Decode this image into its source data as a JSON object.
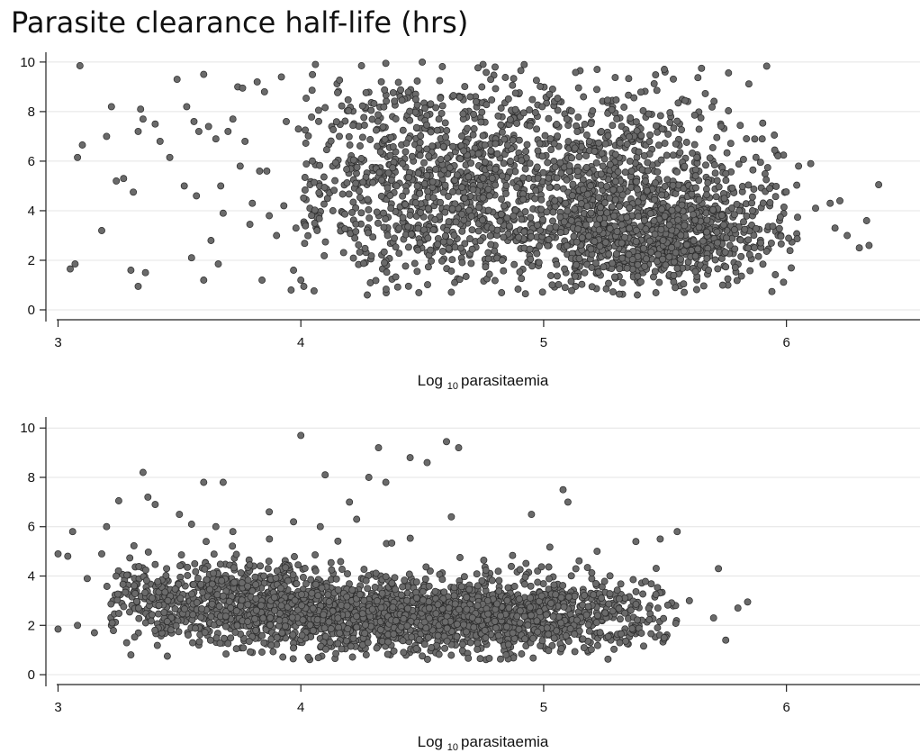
{
  "title": "Parasite clearance half-life (hrs)",
  "colors": {
    "point_fill": "#6a6a6a",
    "point_stroke": "#2b2b2b",
    "grid": "#e4e4e4"
  },
  "chart_data": [
    {
      "type": "scatter",
      "xlabel": {
        "main": "Log",
        "sub": "10",
        "rest": "parasitaemia"
      },
      "ylabel": "",
      "xlim": [
        2.95,
        6.55
      ],
      "ylim": [
        -0.4,
        10.25
      ],
      "xticks": [
        3,
        4,
        5,
        6
      ],
      "yticks": [
        0,
        2,
        4,
        6,
        8,
        10
      ],
      "grid": true,
      "n_points": 2600,
      "points": [
        [
          3.05,
          1.65
        ],
        [
          3.07,
          1.85
        ],
        [
          3.08,
          6.15
        ],
        [
          3.09,
          9.85
        ],
        [
          3.1,
          6.65
        ],
        [
          3.18,
          3.2
        ],
        [
          3.2,
          7.0
        ],
        [
          3.22,
          8.2
        ],
        [
          3.24,
          5.2
        ],
        [
          3.27,
          5.3
        ],
        [
          3.3,
          1.6
        ],
        [
          3.31,
          4.75
        ],
        [
          3.33,
          7.2
        ],
        [
          3.33,
          0.95
        ],
        [
          3.34,
          8.1
        ],
        [
          3.35,
          7.7
        ],
        [
          3.36,
          1.5
        ],
        [
          3.4,
          7.5
        ],
        [
          3.42,
          6.8
        ],
        [
          3.46,
          6.15
        ],
        [
          3.49,
          9.3
        ],
        [
          3.52,
          5.0
        ],
        [
          3.53,
          8.2
        ],
        [
          3.55,
          2.1
        ],
        [
          3.56,
          7.6
        ],
        [
          3.57,
          4.6
        ],
        [
          3.58,
          7.2
        ],
        [
          3.6,
          9.5
        ],
        [
          3.6,
          1.2
        ],
        [
          3.62,
          7.4
        ],
        [
          3.63,
          2.8
        ],
        [
          3.65,
          6.9
        ],
        [
          3.66,
          1.85
        ],
        [
          3.67,
          5.0
        ],
        [
          3.68,
          3.9
        ],
        [
          3.7,
          7.2
        ],
        [
          3.72,
          7.7
        ],
        [
          3.74,
          9.0
        ],
        [
          3.75,
          5.8
        ],
        [
          3.76,
          8.95
        ],
        [
          3.77,
          6.8
        ],
        [
          3.79,
          3.45
        ],
        [
          3.8,
          4.3
        ],
        [
          3.82,
          9.2
        ],
        [
          3.83,
          5.6
        ],
        [
          3.84,
          1.2
        ],
        [
          3.85,
          8.8
        ],
        [
          3.86,
          5.6
        ],
        [
          3.87,
          3.8
        ],
        [
          3.9,
          3.0
        ],
        [
          3.92,
          9.4
        ],
        [
          3.93,
          4.2
        ],
        [
          3.94,
          7.6
        ],
        [
          3.96,
          0.8
        ],
        [
          3.97,
          1.6
        ],
        [
          3.98,
          3.3
        ],
        [
          3.99,
          7.3
        ],
        [
          4.0,
          1.2
        ],
        [
          4.06,
          9.9
        ],
        [
          4.25,
          9.85
        ],
        [
          4.35,
          9.95
        ],
        [
          4.5,
          10.0
        ],
        [
          4.8,
          9.8
        ],
        [
          5.15,
          9.65
        ],
        [
          5.22,
          9.7
        ],
        [
          5.5,
          9.6
        ],
        [
          5.65,
          9.75
        ],
        [
          5.9,
          6.9
        ],
        [
          5.95,
          7.05
        ],
        [
          5.96,
          6.3
        ],
        [
          6.05,
          5.8
        ],
        [
          6.1,
          5.9
        ],
        [
          6.12,
          4.1
        ],
        [
          6.18,
          4.3
        ],
        [
          6.2,
          3.3
        ],
        [
          6.22,
          4.4
        ],
        [
          6.25,
          3.0
        ],
        [
          6.3,
          2.5
        ],
        [
          6.33,
          3.6
        ],
        [
          6.34,
          2.6
        ],
        [
          6.38,
          5.05
        ]
      ]
    },
    {
      "type": "scatter",
      "xlabel": {
        "main": "Log",
        "sub": "10",
        "rest": "parasitaemia"
      },
      "ylabel": "",
      "xlim": [
        2.95,
        6.55
      ],
      "ylim": [
        -0.4,
        10.3
      ],
      "xticks": [
        3,
        4,
        5,
        6
      ],
      "yticks": [
        0,
        2,
        4,
        6,
        8,
        10
      ],
      "grid": true,
      "n_points": 2700,
      "points": [
        [
          3.0,
          1.85
        ],
        [
          3.0,
          4.9
        ],
        [
          3.04,
          4.8
        ],
        [
          3.06,
          5.8
        ],
        [
          3.08,
          2.0
        ],
        [
          3.12,
          3.9
        ],
        [
          3.15,
          1.7
        ],
        [
          3.18,
          4.9
        ],
        [
          3.2,
          6.0
        ],
        [
          3.22,
          2.0
        ],
        [
          3.25,
          7.05
        ],
        [
          3.3,
          0.8
        ],
        [
          3.35,
          8.2
        ],
        [
          3.37,
          7.2
        ],
        [
          3.4,
          6.9
        ],
        [
          3.45,
          0.75
        ],
        [
          3.5,
          6.5
        ],
        [
          3.55,
          6.1
        ],
        [
          3.58,
          1.2
        ],
        [
          3.6,
          7.8
        ],
        [
          3.65,
          6.0
        ],
        [
          3.68,
          7.8
        ],
        [
          3.72,
          5.8
        ],
        [
          3.8,
          0.9
        ],
        [
          3.87,
          6.6
        ],
        [
          3.97,
          6.2
        ],
        [
          4.0,
          9.7
        ],
        [
          4.08,
          6.0
        ],
        [
          4.1,
          8.1
        ],
        [
          4.2,
          7.0
        ],
        [
          4.23,
          6.3
        ],
        [
          4.28,
          8.0
        ],
        [
          4.32,
          9.2
        ],
        [
          4.35,
          7.8
        ],
        [
          4.45,
          8.8
        ],
        [
          4.52,
          8.6
        ],
        [
          4.6,
          9.45
        ],
        [
          4.65,
          9.2
        ],
        [
          4.62,
          6.4
        ],
        [
          4.95,
          6.5
        ],
        [
          5.08,
          7.5
        ],
        [
          5.1,
          7.0
        ],
        [
          5.22,
          5.0
        ],
        [
          5.38,
          5.4
        ],
        [
          5.48,
          5.5
        ],
        [
          5.55,
          5.8
        ],
        [
          5.6,
          3.0
        ],
        [
          5.7,
          2.3
        ],
        [
          5.72,
          4.3
        ],
        [
          5.75,
          1.4
        ],
        [
          5.8,
          2.7
        ],
        [
          5.84,
          2.95
        ]
      ]
    }
  ]
}
